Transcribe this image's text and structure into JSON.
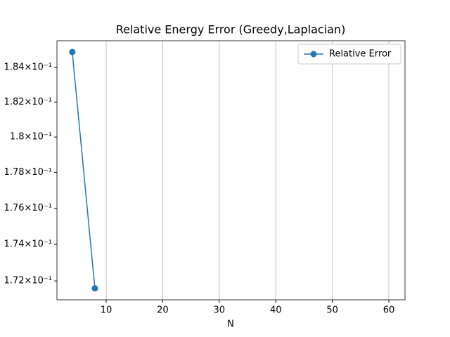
{
  "chart_data": {
    "type": "line",
    "title": "Relative Energy Error (Greedy,Laplacian)",
    "x_label": "N",
    "x": [
      4,
      8
    ],
    "series": [
      {
        "name": "Relative Error",
        "color": "#1f77b4",
        "values": [
          0.1849,
          0.1716
        ]
      }
    ],
    "xlim": [
      1.29,
      62.86
    ],
    "xticks": [
      10,
      20,
      30,
      40,
      50,
      60
    ],
    "ylim": [
      0.17098,
      0.18556
    ],
    "y_scale": "log",
    "yticks": [
      {
        "value": 0.172,
        "label": "1.72×10⁻¹"
      },
      {
        "value": 0.174,
        "label": "1.74×10⁻¹"
      },
      {
        "value": 0.176,
        "label": "1.76×10⁻¹"
      },
      {
        "value": 0.178,
        "label": "1.78×10⁻¹"
      },
      {
        "value": 0.18,
        "label": "1.8×10⁻¹"
      },
      {
        "value": 0.182,
        "label": "1.82×10⁻¹"
      },
      {
        "value": 0.184,
        "label": "1.84×10⁻¹"
      }
    ],
    "grid": "x",
    "legend": "upper right"
  }
}
